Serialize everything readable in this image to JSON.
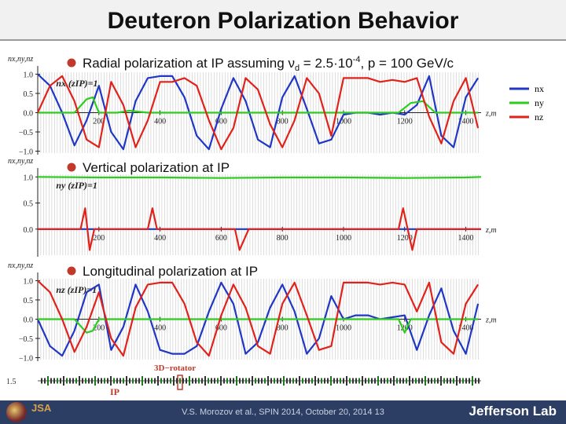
{
  "slide": {
    "title": "Deuteron Polarization Behavior",
    "footer": "V.S. Morozov et al., SPIN 2014, October 20, 2014 13",
    "logo_right": "Jefferson Lab",
    "logo_left": "JSA"
  },
  "bullets": [
    "Radial polarization at IP assuming ν",
    "Vertical polarization at IP",
    "Longitudinal polarization at IP"
  ],
  "bullet1_detail": {
    "nu_sub": "d",
    "eq": " = 2.5·10",
    "exp": "-4",
    "tail": ", p = 100 GeV/c"
  },
  "legend": [
    "nx",
    "ny",
    "nz"
  ],
  "colors": {
    "nx": "#1f37c4",
    "ny": "#2ecc1f",
    "nz": "#e0221b",
    "lattice": "#9a9a9a"
  },
  "lattice": {
    "label_rotator": "3D−rotator",
    "label_ip": "IP",
    "y_label": "1.5"
  },
  "chart_data": [
    {
      "type": "line",
      "ylabel": "nx,ny,nz",
      "inset_label": "nx (zIP)=1",
      "xlabel": "z,m",
      "xlim": [
        0,
        1450
      ],
      "ylim": [
        -1.05,
        1.05
      ],
      "x_ticks": [
        200,
        400,
        600,
        800,
        1000,
        1200,
        1400
      ],
      "y_ticks": [
        1.0,
        0.5,
        0.0,
        -0.5,
        -1.0
      ],
      "y_tick_labels": [
        "1.0",
        "0.5",
        "0.0",
        "−0.5",
        "−1.0"
      ],
      "series": [
        {
          "name": "nx",
          "x": [
            0,
            40,
            80,
            120,
            160,
            200,
            240,
            280,
            320,
            360,
            400,
            440,
            480,
            520,
            560,
            600,
            640,
            680,
            720,
            760,
            800,
            840,
            880,
            920,
            960,
            1000,
            1040,
            1080,
            1120,
            1160,
            1200,
            1240,
            1280,
            1320,
            1360,
            1400,
            1440
          ],
          "y": [
            1.0,
            0.7,
            0.0,
            -0.85,
            -0.2,
            0.7,
            -0.5,
            -0.95,
            0.3,
            0.9,
            0.95,
            0.95,
            0.4,
            -0.6,
            -0.95,
            0.1,
            0.9,
            0.3,
            -0.7,
            -0.9,
            0.4,
            0.95,
            0.1,
            -0.8,
            -0.7,
            -0.05,
            0.0,
            0.0,
            -0.05,
            0.0,
            -0.05,
            0.2,
            0.95,
            -0.6,
            -0.9,
            0.4,
            0.9
          ]
        },
        {
          "name": "ny",
          "x": [
            0,
            120,
            160,
            180,
            200,
            260,
            300,
            360,
            400,
            520,
            560,
            600,
            640,
            700,
            800,
            900,
            1000,
            1120,
            1180,
            1220,
            1260,
            1300,
            1380,
            1440
          ],
          "y": [
            0.0,
            0.0,
            0.35,
            0.4,
            0.0,
            0.0,
            0.05,
            0.0,
            0.0,
            0.0,
            0.0,
            0.0,
            0.0,
            0.0,
            0.0,
            0.0,
            0.0,
            0.0,
            0.0,
            0.25,
            0.3,
            0.0,
            0.0,
            0.0
          ]
        },
        {
          "name": "nz",
          "x": [
            0,
            40,
            80,
            120,
            160,
            200,
            240,
            280,
            320,
            360,
            400,
            440,
            480,
            520,
            560,
            600,
            640,
            680,
            720,
            760,
            800,
            840,
            880,
            920,
            960,
            1000,
            1040,
            1080,
            1120,
            1160,
            1200,
            1240,
            1280,
            1320,
            1360,
            1400,
            1440
          ],
          "y": [
            0.0,
            0.7,
            0.95,
            0.3,
            -0.7,
            -0.9,
            0.8,
            0.2,
            -0.9,
            -0.2,
            0.8,
            0.8,
            0.9,
            0.7,
            -0.2,
            -0.95,
            -0.4,
            0.9,
            0.6,
            -0.3,
            -0.9,
            -0.2,
            0.9,
            0.5,
            -0.6,
            0.9,
            0.9,
            0.9,
            0.8,
            0.85,
            0.8,
            0.9,
            -0.1,
            -0.8,
            0.3,
            0.9,
            -0.4
          ]
        }
      ]
    },
    {
      "type": "line",
      "ylabel": "nx,ny,nz",
      "inset_label": "ny (zIP)=1",
      "xlabel": "z,m",
      "xlim": [
        0,
        1450
      ],
      "ylim": [
        -0.5,
        1.05
      ],
      "x_ticks": [
        200,
        400,
        600,
        800,
        1000,
        1200,
        1400
      ],
      "y_ticks": [
        1.0,
        0.5,
        0.0
      ],
      "y_tick_labels": [
        "1.0",
        "0.5",
        "0.0"
      ],
      "series": [
        {
          "name": "nx",
          "x": [
            0,
            1450
          ],
          "y": [
            0.0,
            0.0
          ]
        },
        {
          "name": "ny",
          "x": [
            0,
            200,
            400,
            600,
            800,
            1000,
            1200,
            1400,
            1450
          ],
          "y": [
            1.0,
            0.99,
            0.99,
            0.98,
            0.99,
            0.99,
            0.98,
            0.99,
            1.0
          ]
        },
        {
          "name": "nz",
          "x": [
            0,
            140,
            155,
            170,
            185,
            200,
            360,
            375,
            390,
            600,
            645,
            660,
            675,
            690,
            1000,
            1120,
            1180,
            1195,
            1210,
            1225,
            1240,
            1450
          ],
          "y": [
            0.0,
            0.0,
            0.4,
            -0.4,
            0.0,
            0.0,
            0.0,
            0.4,
            0.0,
            0.0,
            0.0,
            -0.4,
            -0.2,
            0.0,
            0.0,
            0.0,
            0.0,
            0.4,
            0.0,
            -0.4,
            0.0,
            0.0
          ]
        }
      ]
    },
    {
      "type": "line",
      "ylabel": "nx,ny,nz",
      "inset_label": "nz (zIP)=1",
      "xlabel": "z,m",
      "xlim": [
        0,
        1450
      ],
      "ylim": [
        -1.05,
        1.05
      ],
      "x_ticks": [
        200,
        400,
        600,
        800,
        1000,
        1200,
        1400
      ],
      "y_ticks": [
        1.0,
        0.5,
        0.0,
        -0.5,
        -1.0
      ],
      "y_tick_labels": [
        "1.0",
        "0.5",
        "0.0",
        "−0.5",
        "−1.0"
      ],
      "series": [
        {
          "name": "nx",
          "x": [
            0,
            40,
            80,
            120,
            160,
            200,
            240,
            280,
            320,
            360,
            400,
            440,
            480,
            520,
            560,
            600,
            640,
            680,
            720,
            760,
            800,
            840,
            880,
            920,
            960,
            1000,
            1040,
            1080,
            1120,
            1160,
            1200,
            1240,
            1280,
            1320,
            1360,
            1400,
            1440
          ],
          "y": [
            0.0,
            -0.7,
            -0.95,
            -0.3,
            0.7,
            0.9,
            -0.8,
            -0.2,
            0.9,
            0.2,
            -0.8,
            -0.9,
            -0.9,
            -0.7,
            0.2,
            0.95,
            0.4,
            -0.9,
            -0.6,
            0.3,
            0.9,
            0.2,
            -0.9,
            -0.5,
            0.6,
            0.0,
            0.1,
            0.1,
            0.0,
            0.05,
            0.1,
            -0.8,
            0.1,
            0.8,
            -0.3,
            -0.9,
            0.4
          ]
        },
        {
          "name": "ny",
          "x": [
            0,
            120,
            160,
            180,
            200,
            500,
            560,
            600,
            1000,
            1120,
            1180,
            1200,
            1220,
            1440
          ],
          "y": [
            0.0,
            0.0,
            -0.35,
            -0.3,
            0.0,
            0.0,
            0.0,
            0.0,
            0.0,
            0.0,
            0.0,
            -0.35,
            0.0,
            0.0
          ]
        },
        {
          "name": "nz",
          "x": [
            0,
            40,
            80,
            120,
            160,
            200,
            240,
            280,
            320,
            360,
            400,
            440,
            480,
            520,
            560,
            600,
            640,
            680,
            720,
            760,
            800,
            840,
            880,
            920,
            960,
            1000,
            1040,
            1080,
            1120,
            1160,
            1200,
            1240,
            1280,
            1320,
            1360,
            1400,
            1440
          ],
          "y": [
            1.0,
            0.7,
            0.0,
            -0.85,
            -0.2,
            0.7,
            -0.5,
            -0.95,
            0.3,
            0.9,
            0.95,
            0.95,
            0.4,
            -0.6,
            -0.95,
            0.1,
            0.9,
            0.3,
            -0.7,
            -0.9,
            0.4,
            0.95,
            0.1,
            -0.8,
            -0.7,
            0.95,
            0.95,
            0.95,
            0.9,
            0.95,
            0.9,
            0.2,
            0.95,
            -0.6,
            -0.9,
            0.4,
            0.9
          ]
        }
      ]
    }
  ]
}
